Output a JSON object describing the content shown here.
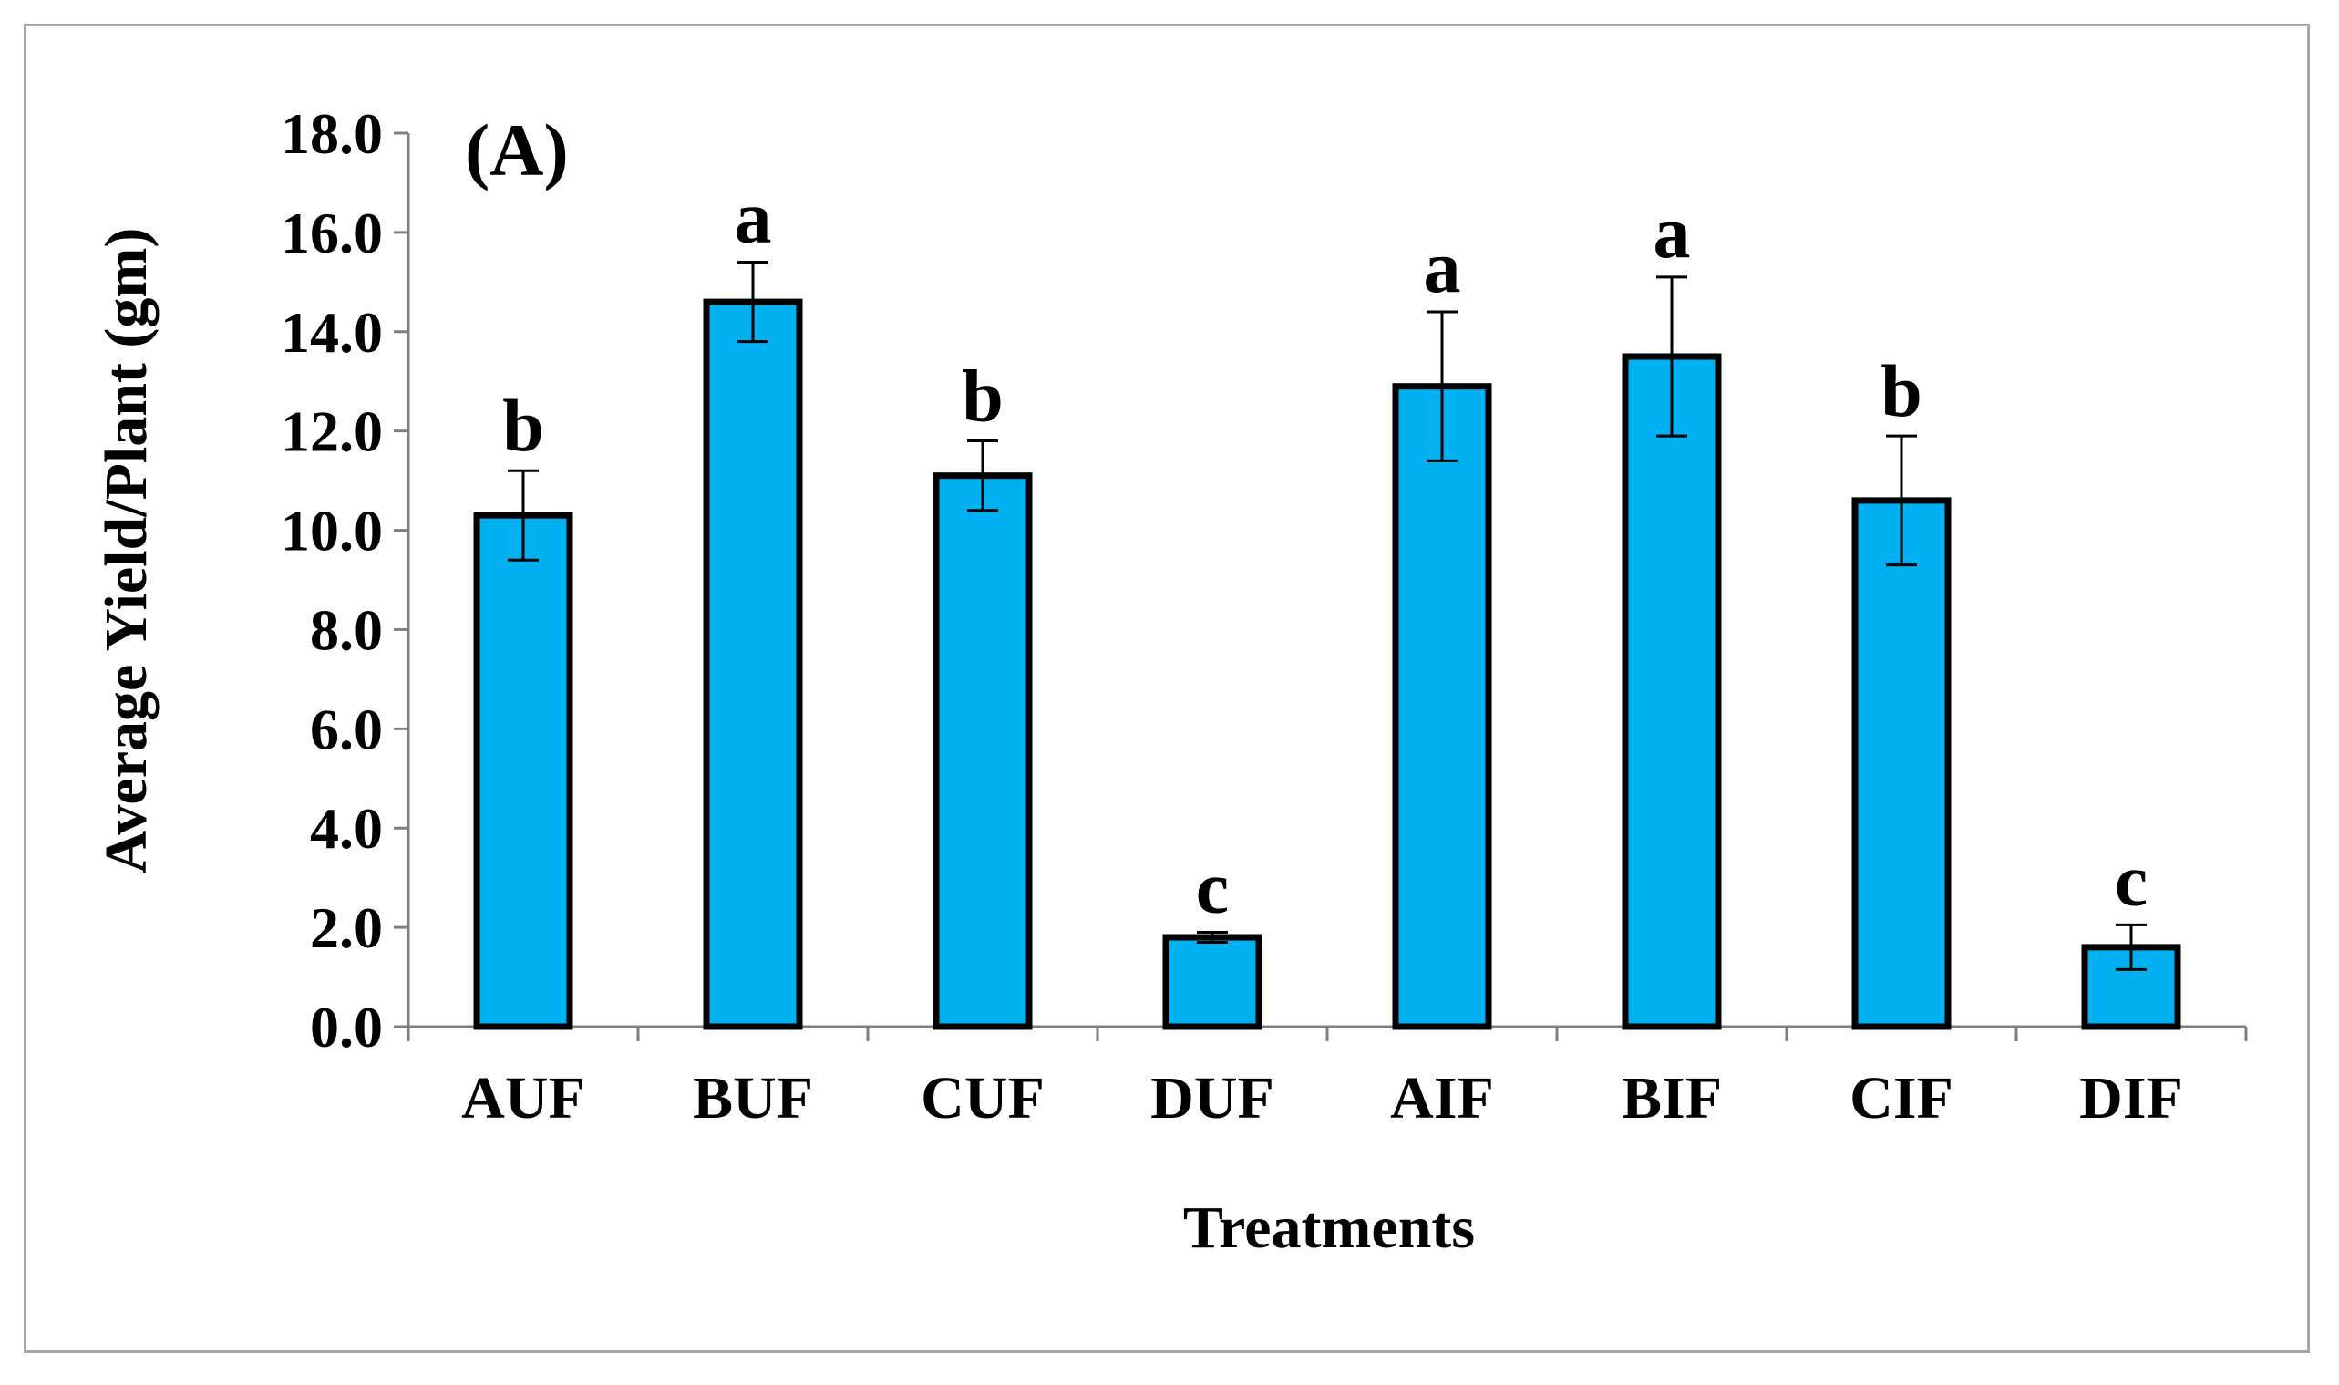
{
  "chart_data": {
    "type": "bar",
    "panel_label": "(A)",
    "title": "",
    "xlabel": "Treatments",
    "ylabel": "Average Yield/Plant (gm)",
    "ylim": [
      0,
      18
    ],
    "ytick_step": 2,
    "yticks": [
      "0.0",
      "2.0",
      "4.0",
      "6.0",
      "8.0",
      "10.0",
      "12.0",
      "14.0",
      "16.0",
      "18.0"
    ],
    "grid": false,
    "legend": "none",
    "categories": [
      "AUF",
      "BUF",
      "CUF",
      "DUF",
      "AIF",
      "BIF",
      "CIF",
      "DIF"
    ],
    "values": [
      10.3,
      14.6,
      11.1,
      1.8,
      12.9,
      13.5,
      10.6,
      1.6
    ],
    "errors": [
      0.9,
      0.8,
      0.7,
      0.1,
      1.5,
      1.6,
      1.3,
      0.45
    ],
    "significance": [
      "b",
      "a",
      "b",
      "c",
      "a",
      "a",
      "b",
      "c"
    ],
    "colors": {
      "bar_fill": "#00b0f0",
      "bar_stroke": "#000000",
      "axis": "#7f7f7f",
      "frame": "#a6a6a6"
    }
  }
}
